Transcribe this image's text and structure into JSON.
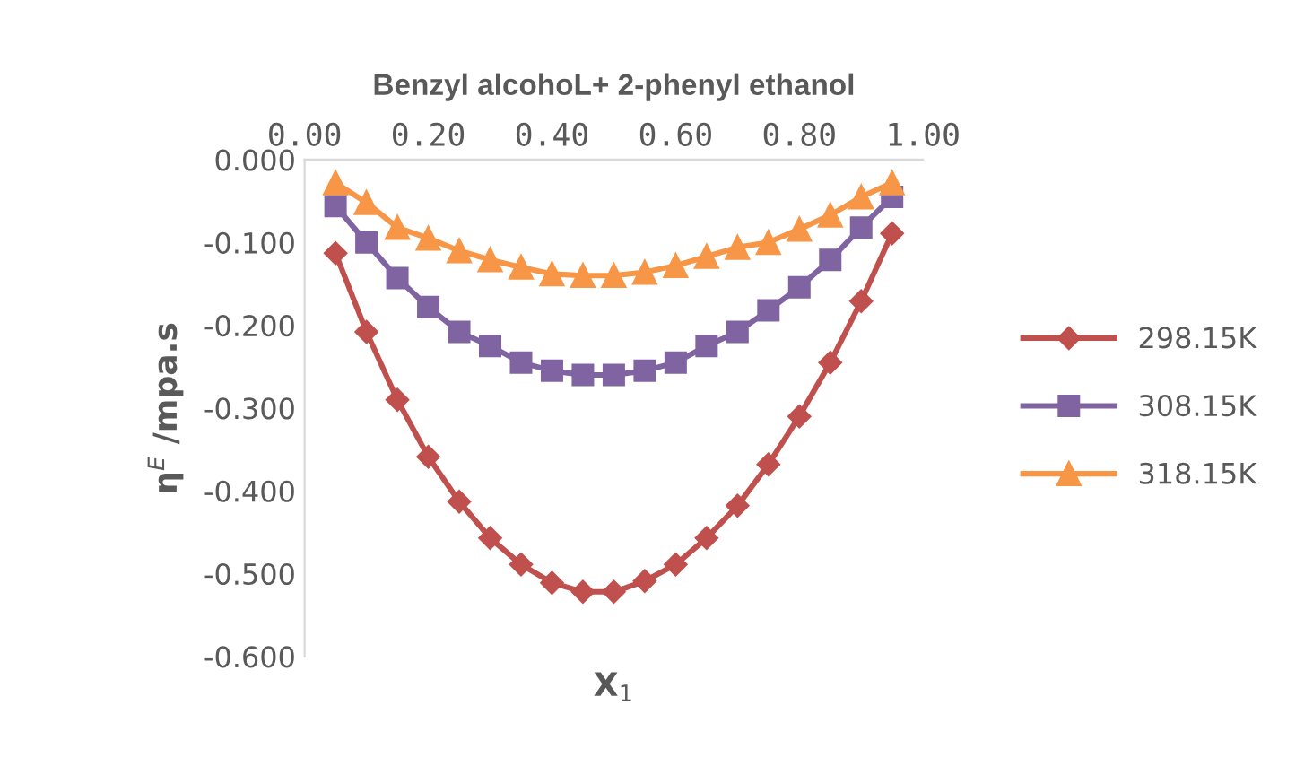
{
  "chart_data": {
    "type": "line",
    "title": "Benzyl alcohoL+ 2-phenyl ethanol",
    "xlabel": "X$_{1}$",
    "ylabel": "η$^{E}$ /mpa.s",
    "x": [
      0.05,
      0.1,
      0.15,
      0.2,
      0.25,
      0.3,
      0.35,
      0.4,
      0.45,
      0.5,
      0.55,
      0.6,
      0.65,
      0.7,
      0.75,
      0.8,
      0.85,
      0.9,
      0.95
    ],
    "series": [
      {
        "name": "298.15K",
        "color": "#c0504d",
        "marker": "diamond",
        "values": [
          -0.113,
          -0.208,
          -0.29,
          -0.359,
          -0.413,
          -0.457,
          -0.489,
          -0.511,
          -0.522,
          -0.522,
          -0.509,
          -0.489,
          -0.457,
          -0.418,
          -0.368,
          -0.31,
          -0.245,
          -0.171,
          -0.089
        ]
      },
      {
        "name": "308.15K",
        "color": "#8064a2",
        "marker": "square",
        "values": [
          -0.056,
          -0.1,
          -0.143,
          -0.178,
          -0.208,
          -0.225,
          -0.245,
          -0.255,
          -0.26,
          -0.26,
          -0.255,
          -0.245,
          -0.225,
          -0.208,
          -0.182,
          -0.154,
          -0.121,
          -0.082,
          -0.045
        ]
      },
      {
        "name": "318.15K",
        "color": "#f79646",
        "marker": "triangle",
        "values": [
          -0.028,
          -0.052,
          -0.082,
          -0.095,
          -0.11,
          -0.121,
          -0.13,
          -0.138,
          -0.14,
          -0.14,
          -0.136,
          -0.128,
          -0.117,
          -0.106,
          -0.1,
          -0.084,
          -0.067,
          -0.045,
          -0.028
        ]
      }
    ],
    "xlim": [
      0,
      1
    ],
    "xticks": [
      {
        "value": 0,
        "label": "0.00"
      },
      {
        "value": 0.2,
        "label": "0.20"
      },
      {
        "value": 0.4,
        "label": "0.40"
      },
      {
        "value": 0.6,
        "label": "0.60"
      },
      {
        "value": 0.8,
        "label": "0.80"
      },
      {
        "value": 1,
        "label": "1.00"
      }
    ],
    "ylim": [
      -0.6,
      0
    ],
    "yticks": [
      {
        "value": -0.6,
        "label": "-0.600"
      },
      {
        "value": -0.5,
        "label": "-0.500"
      },
      {
        "value": -0.4,
        "label": "-0.400"
      },
      {
        "value": -0.3,
        "label": "-0.300"
      },
      {
        "value": -0.2,
        "label": "-0.200"
      },
      {
        "value": -0.1,
        "label": "-0.100"
      },
      {
        "value": 0,
        "label": "0.000"
      }
    ],
    "legend": "right",
    "grid": false,
    "line_style": "solid"
  }
}
